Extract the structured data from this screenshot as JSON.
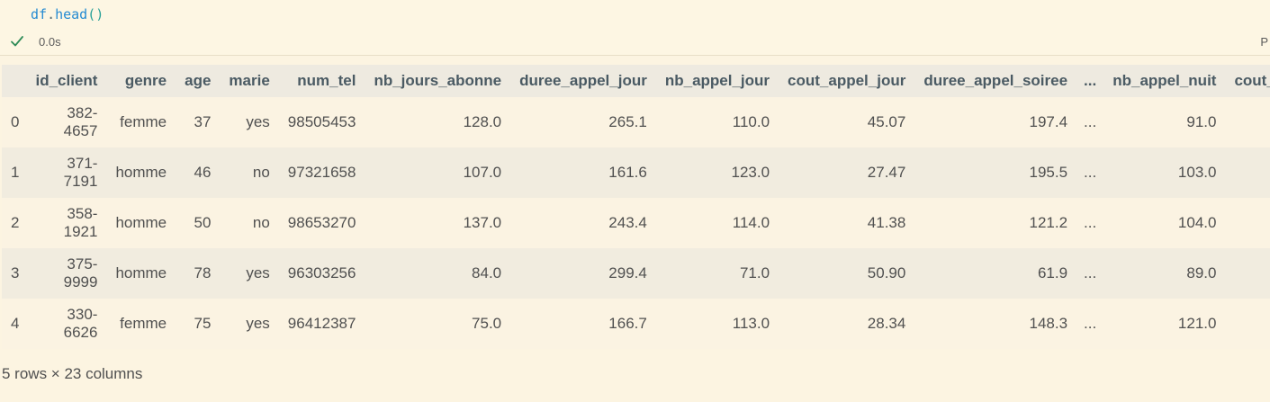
{
  "cell": {
    "code_obj": "df",
    "code_dot": ".",
    "code_fn": "head",
    "code_parens": "()",
    "exec_time": "0.0s",
    "edge_label": "P"
  },
  "table": {
    "columns": [
      "id_client",
      "genre",
      "age",
      "marie",
      "num_tel",
      "nb_jours_abonne",
      "duree_appel_jour",
      "nb_appel_jour",
      "cout_appel_jour",
      "duree_appel_soiree",
      "...",
      "nb_appel_nuit",
      "cout_"
    ],
    "rows": [
      {
        "index": "0",
        "id_client_a": "382-",
        "id_client_b": "4657",
        "genre": "femme",
        "age": "37",
        "marie": "yes",
        "num_tel": "98505453",
        "nb_jours_abonne": "128.0",
        "duree_appel_jour": "265.1",
        "nb_appel_jour": "110.0",
        "cout_appel_jour": "45.07",
        "duree_appel_soiree": "197.4",
        "ellipsis": "...",
        "nb_appel_nuit": "91.0"
      },
      {
        "index": "1",
        "id_client_a": "371-",
        "id_client_b": "7191",
        "genre": "homme",
        "age": "46",
        "marie": "no",
        "num_tel": "97321658",
        "nb_jours_abonne": "107.0",
        "duree_appel_jour": "161.6",
        "nb_appel_jour": "123.0",
        "cout_appel_jour": "27.47",
        "duree_appel_soiree": "195.5",
        "ellipsis": "...",
        "nb_appel_nuit": "103.0"
      },
      {
        "index": "2",
        "id_client_a": "358-",
        "id_client_b": "1921",
        "genre": "homme",
        "age": "50",
        "marie": "no",
        "num_tel": "98653270",
        "nb_jours_abonne": "137.0",
        "duree_appel_jour": "243.4",
        "nb_appel_jour": "114.0",
        "cout_appel_jour": "41.38",
        "duree_appel_soiree": "121.2",
        "ellipsis": "...",
        "nb_appel_nuit": "104.0"
      },
      {
        "index": "3",
        "id_client_a": "375-",
        "id_client_b": "9999",
        "genre": "homme",
        "age": "78",
        "marie": "yes",
        "num_tel": "96303256",
        "nb_jours_abonne": "84.0",
        "duree_appel_jour": "299.4",
        "nb_appel_jour": "71.0",
        "cout_appel_jour": "50.90",
        "duree_appel_soiree": "61.9",
        "ellipsis": "...",
        "nb_appel_nuit": "89.0"
      },
      {
        "index": "4",
        "id_client_a": "330-",
        "id_client_b": "6626",
        "genre": "femme",
        "age": "75",
        "marie": "yes",
        "num_tel": "96412387",
        "nb_jours_abonne": "75.0",
        "duree_appel_jour": "166.7",
        "nb_appel_jour": "113.0",
        "cout_appel_jour": "28.34",
        "duree_appel_soiree": "148.3",
        "ellipsis": "...",
        "nb_appel_nuit": "121.0"
      }
    ],
    "summary": "5 rows × 23 columns"
  },
  "colors": {
    "success_check": "#2e8b57",
    "code_blue": "#268bd2"
  },
  "icons": {
    "status": "checkmark-icon"
  }
}
